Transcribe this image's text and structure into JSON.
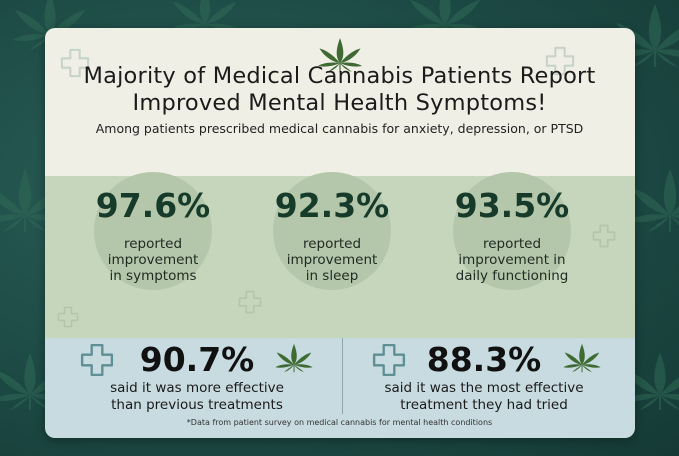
{
  "title_lines": [
    "Majority of Medical Cannabis Patients Report",
    "Improved Mental Health Symptoms!"
  ],
  "subtitle": "Among patients prescribed medical cannabis for anxiety, depression, or PTSD",
  "stats": [
    {
      "value": "97.6%",
      "lines": [
        "reported",
        "improvement",
        "in symptoms"
      ]
    },
    {
      "value": "92.3%",
      "lines": [
        "reported",
        "improvement",
        "in sleep"
      ]
    },
    {
      "value": "93.5%",
      "lines": [
        "reported",
        "improvement in",
        "daily functioning"
      ]
    }
  ],
  "bottom_stats": [
    {
      "value": "90.7%",
      "lines": [
        "said it was more effective",
        "than previous treatments"
      ]
    },
    {
      "value": "88.3%",
      "lines": [
        "said it was the most effective",
        "treatment they had tried"
      ]
    }
  ],
  "footnote": "*Data from patient survey on medical cannabis for mental health conditions",
  "icons": {
    "header": "cannabis-leaf-icon",
    "bottom_left": [
      "medical-cross-icon",
      "cannabis-leaf-icon"
    ],
    "bottom_right": [
      "medical-cross-icon",
      "cannabis-leaf-icon"
    ]
  },
  "colors": {
    "background": "#1d4a45",
    "header": "#f0efe6",
    "stats_band": "#c6d6bc",
    "bottom_band": "#c8dbe0",
    "leaf": "#3f6b33"
  }
}
